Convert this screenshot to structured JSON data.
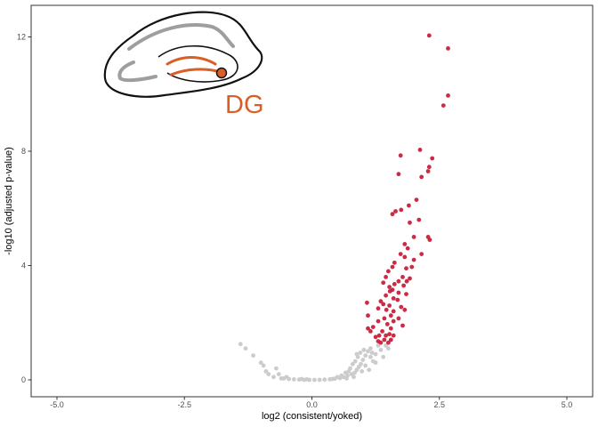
{
  "chart_data": {
    "type": "scatter",
    "title": "",
    "xlabel": "log2 (consistent/yoked)",
    "ylabel": "-log10 (adjusted p-value)",
    "xlim": [
      -5.0,
      5.0
    ],
    "ylim": [
      0,
      12.5
    ],
    "xticks": [
      -5.0,
      -2.5,
      0.0,
      2.5,
      5.0
    ],
    "xtick_labels": [
      "-5.0",
      "-2.5",
      "0.0",
      "2.5",
      "5.0"
    ],
    "yticks": [
      0,
      4,
      8,
      12
    ],
    "ytick_labels": [
      "0",
      "4",
      "8",
      "12"
    ],
    "grid": false,
    "legend": "none",
    "inset_label": "DG",
    "colors": {
      "significant": "#c8203a",
      "not_significant": "#cccccc",
      "inset_label": "#d95f27",
      "inset_outline": "#111111",
      "inset_gray": "#9e9e9e",
      "panel_border": "#333333"
    },
    "series": [
      {
        "color": "#c8203a",
        "points": [
          [
            2.3,
            12.05
          ],
          [
            2.67,
            11.6
          ],
          [
            2.67,
            9.95
          ],
          [
            2.58,
            9.6
          ],
          [
            1.74,
            7.85
          ],
          [
            2.12,
            8.05
          ],
          [
            2.3,
            7.45
          ],
          [
            2.28,
            7.3
          ],
          [
            2.15,
            7.1
          ],
          [
            2.36,
            7.75
          ],
          [
            1.7,
            7.2
          ],
          [
            2.05,
            6.3
          ],
          [
            1.9,
            6.1
          ],
          [
            1.75,
            5.95
          ],
          [
            1.64,
            5.9
          ],
          [
            1.58,
            5.8
          ],
          [
            2.1,
            5.6
          ],
          [
            1.92,
            5.5
          ],
          [
            2.0,
            5.0
          ],
          [
            2.28,
            5.0
          ],
          [
            2.31,
            4.9
          ],
          [
            1.82,
            4.75
          ],
          [
            1.88,
            4.6
          ],
          [
            2.15,
            4.4
          ],
          [
            1.74,
            4.4
          ],
          [
            1.82,
            4.3
          ],
          [
            2.0,
            4.2
          ],
          [
            1.62,
            4.1
          ],
          [
            1.58,
            3.95
          ],
          [
            1.96,
            3.95
          ],
          [
            1.85,
            3.9
          ],
          [
            1.5,
            3.8
          ],
          [
            1.45,
            3.6
          ],
          [
            1.78,
            3.6
          ],
          [
            1.92,
            3.55
          ],
          [
            1.7,
            3.45
          ],
          [
            1.86,
            3.45
          ],
          [
            1.4,
            3.4
          ],
          [
            1.62,
            3.35
          ],
          [
            1.8,
            3.3
          ],
          [
            1.52,
            3.25
          ],
          [
            1.58,
            3.15
          ],
          [
            1.53,
            3.1
          ],
          [
            1.7,
            3.05
          ],
          [
            1.85,
            3.0
          ],
          [
            1.45,
            2.95
          ],
          [
            1.6,
            2.85
          ],
          [
            1.68,
            2.8
          ],
          [
            1.08,
            2.7
          ],
          [
            1.35,
            2.75
          ],
          [
            1.4,
            2.65
          ],
          [
            1.52,
            2.6
          ],
          [
            1.75,
            2.55
          ],
          [
            1.3,
            2.5
          ],
          [
            1.46,
            2.45
          ],
          [
            1.6,
            2.4
          ],
          [
            1.82,
            2.45
          ],
          [
            1.55,
            2.25
          ],
          [
            1.1,
            2.25
          ],
          [
            1.42,
            2.15
          ],
          [
            1.7,
            2.15
          ],
          [
            1.3,
            2.05
          ],
          [
            1.6,
            2.05
          ],
          [
            1.48,
            1.95
          ],
          [
            1.78,
            1.9
          ],
          [
            1.2,
            1.85
          ],
          [
            1.55,
            1.8
          ],
          [
            1.1,
            1.8
          ],
          [
            1.15,
            1.7
          ],
          [
            1.38,
            1.7
          ],
          [
            1.52,
            1.6
          ],
          [
            1.32,
            1.55
          ],
          [
            1.45,
            1.55
          ],
          [
            1.6,
            1.55
          ],
          [
            1.25,
            1.5
          ],
          [
            1.42,
            1.4
          ],
          [
            1.55,
            1.4
          ],
          [
            1.3,
            1.35
          ],
          [
            1.5,
            1.3
          ],
          [
            1.35,
            1.3
          ]
        ]
      },
      {
        "color": "#cccccc",
        "points": [
          [
            -1.4,
            1.25
          ],
          [
            -1.3,
            1.1
          ],
          [
            -1.15,
            0.85
          ],
          [
            -1.0,
            0.6
          ],
          [
            -0.95,
            0.5
          ],
          [
            -0.7,
            0.4
          ],
          [
            -0.9,
            0.3
          ],
          [
            -0.85,
            0.2
          ],
          [
            -0.65,
            0.2
          ],
          [
            -0.75,
            0.1
          ],
          [
            -0.6,
            0.05
          ],
          [
            -0.55,
            0.05
          ],
          [
            -0.45,
            0.03
          ],
          [
            -0.35,
            0.02
          ],
          [
            -0.25,
            0.01
          ],
          [
            -0.15,
            0.0
          ],
          [
            -0.05,
            0.0
          ],
          [
            0.05,
            0.0
          ],
          [
            0.15,
            0.0
          ],
          [
            0.25,
            0.01
          ],
          [
            0.35,
            0.02
          ],
          [
            0.45,
            0.04
          ],
          [
            0.55,
            0.06
          ],
          [
            0.62,
            0.1
          ],
          [
            0.7,
            0.15
          ],
          [
            0.78,
            0.2
          ],
          [
            0.84,
            0.25
          ],
          [
            0.88,
            0.35
          ],
          [
            0.92,
            0.45
          ],
          [
            0.96,
            0.55
          ],
          [
            1.0,
            0.7
          ],
          [
            1.05,
            0.85
          ],
          [
            1.1,
            1.0
          ],
          [
            1.15,
            1.1
          ],
          [
            1.25,
            0.9
          ],
          [
            1.35,
            1.05
          ],
          [
            1.3,
            1.2
          ],
          [
            1.45,
            1.2
          ],
          [
            1.4,
            0.8
          ],
          [
            1.2,
            0.65
          ],
          [
            1.5,
            1.1
          ],
          [
            0.8,
            0.55
          ],
          [
            0.85,
            0.65
          ],
          [
            0.75,
            0.4
          ],
          [
            0.9,
            0.8
          ],
          [
            0.72,
            0.3
          ],
          [
            0.66,
            0.25
          ],
          [
            0.95,
            0.95
          ],
          [
            1.05,
            0.5
          ],
          [
            1.15,
            0.8
          ],
          [
            1.25,
            0.6
          ],
          [
            0.98,
            0.3
          ],
          [
            0.82,
            0.1
          ],
          [
            0.58,
            0.15
          ],
          [
            0.5,
            0.1
          ],
          [
            0.68,
            0.05
          ],
          [
            -0.2,
            0.03
          ],
          [
            -0.1,
            0.02
          ],
          [
            0.4,
            0.03
          ],
          [
            -0.5,
            0.1
          ],
          [
            1.02,
            1.05
          ],
          [
            1.12,
            0.35
          ],
          [
            0.88,
            0.9
          ],
          [
            1.18,
            0.95
          ]
        ]
      }
    ]
  }
}
